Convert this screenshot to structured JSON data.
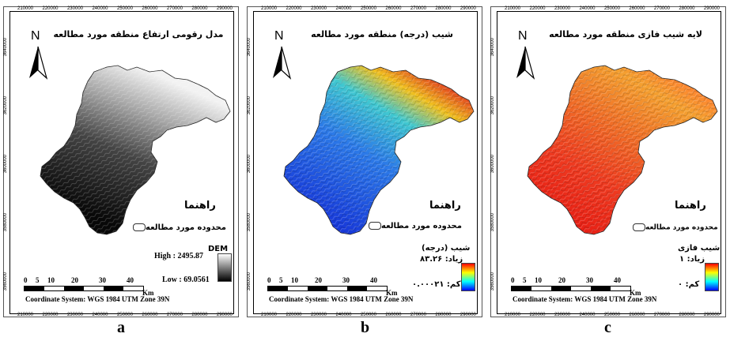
{
  "ticks": {
    "x": [
      "210000",
      "220000",
      "230000",
      "240000",
      "250000",
      "260000",
      "270000",
      "280000",
      "290000"
    ],
    "y_left": [
      "3640000",
      "3620000",
      "3600000",
      "3580000",
      "3560000"
    ]
  },
  "panels": [
    {
      "title": "مدل رقومی ارتفاع منطقه مورد مطالعه",
      "north": "N",
      "legend_title": "راهنما",
      "legend_item": "محدوده مورد مطالعه",
      "ramp_title": "DEM",
      "ramp_high": "High : 2495.87",
      "ramp_low": "Low : 69.0561",
      "caption": "a",
      "colors": [
        "#ffffff",
        "#000000"
      ]
    },
    {
      "title": "شیب (درجه) منطقه مورد مطالعه",
      "north": "N",
      "legend_title": "راهنما",
      "legend_item": "محدوده مورد مطالعه",
      "ramp_title": "شیب (درجه)",
      "ramp_high": "زیاد: ۸۳.۲۶",
      "ramp_low": "کم: ۰.۰۰۰۲۱",
      "caption": "b",
      "colors": [
        "#ff0000",
        "#ffff00",
        "#00ffff",
        "#0000ff"
      ]
    },
    {
      "title": "لایه شیب فازی منطقه مورد مطالعه",
      "north": "N",
      "legend_title": "راهنما",
      "legend_item": "محدوده مورد مطالعه",
      "ramp_title": "شیب فازی",
      "ramp_high": "زیاد: ۱",
      "ramp_low": "کم: ۰",
      "caption": "c",
      "colors": [
        "#ff0000",
        "#ffff00",
        "#00ffff",
        "#0000ff"
      ]
    }
  ],
  "scale": {
    "ticks": [
      "0",
      "5",
      "10",
      "20",
      "30",
      "40"
    ],
    "unit": "Km"
  },
  "coordinate_system": "Coordinate System: WGS 1984 UTM Zone 39N"
}
